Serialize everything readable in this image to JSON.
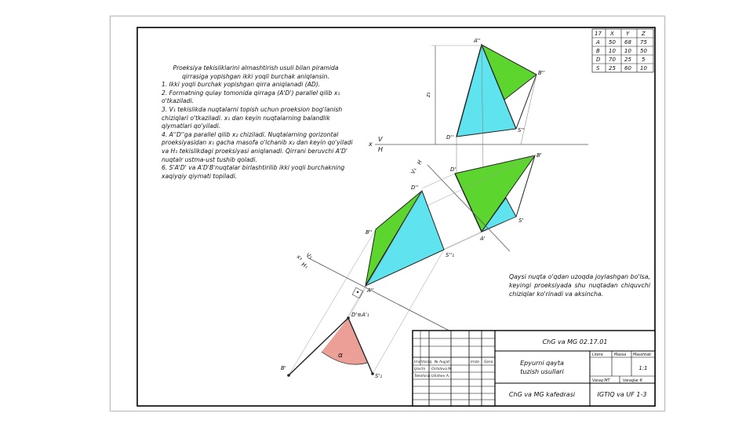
{
  "description": {
    "intro": "Proeksiya tekisliklarini almashtirish usuli bilan piramida qirrasiga yopishgan ikki yoqli burchak aniqlansin.",
    "steps": [
      "1. Ikki yoqli burchak yopishgan qirra aniqlanadi (AD).",
      "2. Formatning qulay tomonida qirraga (A'D') parallel qilib x₁ o'tkaziladi.",
      "3. V₁ tekislikda nuqtalarni topish uchun proeksion bog'lanish chiziqlari o'tkaziladi. x₁ dan keyin nuqtalarning balandlik qiymatlari qo'yiladi.",
      "4. A''D''ga parallel qilib x₂ chiziladi. Nuqtalarning gorizontal proeksiyasidan x₁ gacha masofa o'lchanib x₂ dan keyin qo'yiladi va H₁ tekislikdagi proeksiyasi aniqlanadi. Qirrani beruvchi A'D' nuqtalr ustma-ust tushib qoladi.",
      "6. S'A'D' va A'D'B'nuqtalar birlashtirilib ikki yoqli burchakning xaqiyqiy qiymati topiladi."
    ]
  },
  "note": "Qaysi nuqta o'qdan uzoqda joylashgan bo'lsa, keyingi proeksiyada shu nuqtadan chiquvchi chiziqlar ko'rinadi va aksincha.",
  "coord_table": {
    "headers": [
      "17",
      "X",
      "Y",
      "Z"
    ],
    "rows": [
      [
        "A",
        "50",
        "68",
        "75"
      ],
      [
        "B",
        "10",
        "10",
        "50"
      ],
      [
        "D",
        "70",
        "25",
        "5"
      ],
      [
        "S",
        "25",
        "60",
        "10"
      ]
    ]
  },
  "title_block": {
    "code": "ChG va MG 02.17.01",
    "title_line1": "Epyurni qayta",
    "title_line2": "tuzish usullari",
    "department": "ChG va MG kafedrasi",
    "group": "IGTIQ va UF 1-3",
    "col_headers": [
      "Imz",
      "Varaq",
      "№ hujjat",
      "Imzo",
      "Sana"
    ],
    "role1": "Ijrochi",
    "person1": "Ochilova M.",
    "role2": "Tekshirdi",
    "person2": "Utishev A.",
    "litera": "Litera",
    "massa": "Massa",
    "masshtab": "Masshtab",
    "scale": "1:1",
    "varaq": "Varaq MT",
    "varaqlar": "Varaqlar 8"
  },
  "labels": {
    "A2": "A''",
    "B2": "B''",
    "D2": "D''",
    "S2": "S''",
    "x_axis": "x",
    "V": "V",
    "H": "H",
    "z1": "z₁",
    "B1p": "B'",
    "D1p": "D'",
    "A1p": "A'",
    "S1p": "S'",
    "H1_axis": "H",
    "V1_axis": "V₁",
    "D4": "D''",
    "B4": "B''",
    "S4": "S''₁",
    "A4": "A''",
    "x2": "x₂",
    "V1b": "V₁",
    "H1b": "H₁",
    "DA_true": "D'≡A'₁",
    "B_true": "B'",
    "S_true": "S'₁",
    "alpha": "α"
  },
  "colors": {
    "cyan": "#5fe3ee",
    "green": "#5cd62e",
    "salmon": "#ec9f96",
    "line": "#222222"
  }
}
